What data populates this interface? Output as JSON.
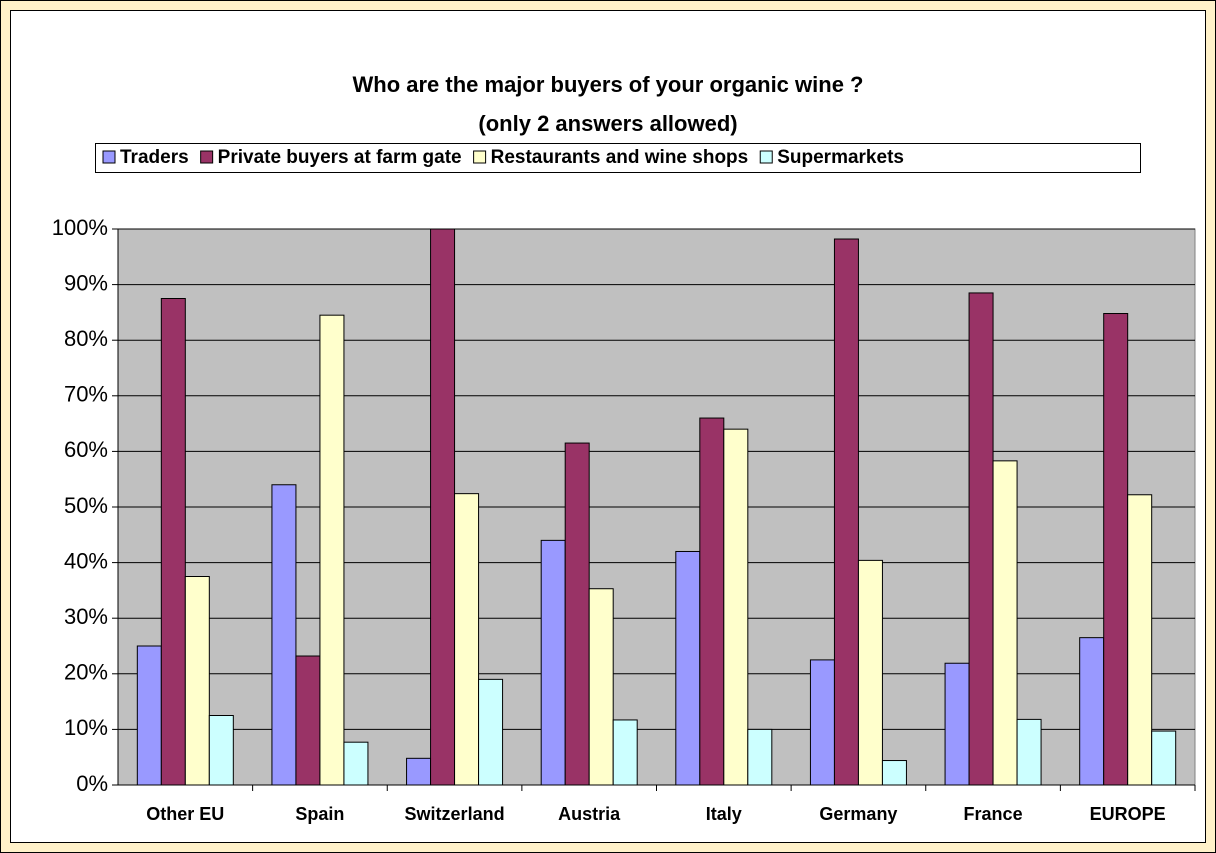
{
  "chart_data": {
    "type": "bar",
    "title": "Who are the major buyers of your organic wine ?",
    "subtitle": "(only 2 answers allowed)",
    "categories": [
      "Other EU",
      "Spain",
      "Switzerland",
      "Austria",
      "Italy",
      "Germany",
      "France",
      "EUROPE"
    ],
    "series": [
      {
        "name": "Traders",
        "color": "#9999ff",
        "values": [
          25,
          54,
          4.8,
          44,
          42,
          22.5,
          21.9,
          26.5
        ]
      },
      {
        "name": "Private buyers at farm gate",
        "color": "#993366",
        "values": [
          87.5,
          23.2,
          100,
          61.5,
          66,
          98.2,
          88.5,
          84.8
        ]
      },
      {
        "name": "Restaurants and wine shops",
        "color": "#ffffcc",
        "values": [
          37.5,
          84.5,
          52.4,
          35.3,
          64,
          40.4,
          58.3,
          52.2
        ]
      },
      {
        "name": "Supermarkets",
        "color": "#ccffff",
        "values": [
          12.5,
          7.7,
          19,
          11.7,
          10,
          4.4,
          11.8,
          9.7
        ]
      }
    ],
    "ylim": [
      0,
      100
    ],
    "yticks": [
      {
        "value": 0,
        "label": "0%"
      },
      {
        "value": 10,
        "label": "10%"
      },
      {
        "value": 20,
        "label": "20%"
      },
      {
        "value": 30,
        "label": "30%"
      },
      {
        "value": 40,
        "label": "40%"
      },
      {
        "value": 50,
        "label": "50%"
      },
      {
        "value": 60,
        "label": "60%"
      },
      {
        "value": 70,
        "label": "70%"
      },
      {
        "value": 80,
        "label": "80%"
      },
      {
        "value": 90,
        "label": "90%"
      },
      {
        "value": 100,
        "label": "100%"
      }
    ],
    "grid": true,
    "legend": "top"
  }
}
